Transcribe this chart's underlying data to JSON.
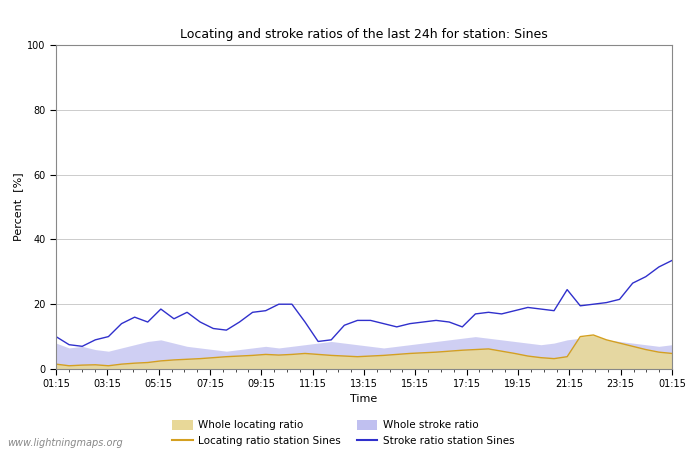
{
  "title": "Locating and stroke ratios of the last 24h for station: Sines",
  "xlabel": "Time",
  "ylabel": "Percent  [%]",
  "xlim": [
    0,
    48
  ],
  "ylim": [
    0,
    100
  ],
  "yticks": [
    0,
    20,
    40,
    60,
    80,
    100
  ],
  "xtick_labels": [
    "01:15",
    "03:15",
    "05:15",
    "07:15",
    "09:15",
    "11:15",
    "13:15",
    "15:15",
    "17:15",
    "19:15",
    "21:15",
    "23:15",
    "01:15"
  ],
  "bg_color": "#ffffff",
  "plot_bg_color": "#ffffff",
  "watermark": "www.lightningmaps.org",
  "whole_locating_fill_color": "#e8d898",
  "whole_locating_fill_alpha": 0.9,
  "whole_stroke_fill_color": "#c0c0f0",
  "whole_stroke_fill_alpha": 0.75,
  "locating_line_color": "#d4a020",
  "stroke_line_color": "#3030cc",
  "whole_locating": [
    1.5,
    1.0,
    1.2,
    1.3,
    1.0,
    1.5,
    1.8,
    2.0,
    2.5,
    2.8,
    3.0,
    3.2,
    3.5,
    3.8,
    4.0,
    4.2,
    4.5,
    4.3,
    4.5,
    4.8,
    4.5,
    4.2,
    4.0,
    3.8,
    4.0,
    4.2,
    4.5,
    4.8,
    5.0,
    5.2,
    5.5,
    5.8,
    6.0,
    6.2,
    5.5,
    4.8,
    4.0,
    3.5,
    3.2,
    3.8,
    10.0,
    10.5,
    9.0,
    8.0,
    7.0,
    6.0,
    5.2,
    4.8
  ],
  "whole_stroke": [
    8.0,
    6.5,
    7.0,
    6.0,
    5.5,
    6.5,
    7.5,
    8.5,
    9.0,
    8.0,
    7.0,
    6.5,
    6.0,
    5.5,
    6.0,
    6.5,
    7.0,
    6.5,
    7.0,
    7.5,
    8.0,
    8.5,
    8.0,
    7.5,
    7.0,
    6.5,
    7.0,
    7.5,
    8.0,
    8.5,
    9.0,
    9.5,
    10.0,
    9.5,
    9.0,
    8.5,
    8.0,
    7.5,
    8.0,
    9.0,
    9.5,
    10.0,
    9.0,
    8.5,
    8.0,
    7.5,
    7.0,
    7.5
  ],
  "locating_station": [
    1.5,
    1.0,
    1.2,
    1.3,
    1.0,
    1.5,
    1.8,
    2.0,
    2.5,
    2.8,
    3.0,
    3.2,
    3.5,
    3.8,
    4.0,
    4.2,
    4.5,
    4.3,
    4.5,
    4.8,
    4.5,
    4.2,
    4.0,
    3.8,
    4.0,
    4.2,
    4.5,
    4.8,
    5.0,
    5.2,
    5.5,
    5.8,
    6.0,
    6.2,
    5.5,
    4.8,
    4.0,
    3.5,
    3.2,
    3.8,
    10.0,
    10.5,
    9.0,
    8.0,
    7.0,
    6.0,
    5.2,
    4.8
  ],
  "stroke_station": [
    10.0,
    7.5,
    7.0,
    9.0,
    10.0,
    14.0,
    16.0,
    14.5,
    18.5,
    15.5,
    17.5,
    14.5,
    12.5,
    12.0,
    14.5,
    17.5,
    18.0,
    20.0,
    20.0,
    14.5,
    8.5,
    9.0,
    13.5,
    15.0,
    15.0,
    14.0,
    13.0,
    14.0,
    14.5,
    15.0,
    14.5,
    13.0,
    17.0,
    17.5,
    17.0,
    18.0,
    19.0,
    18.5,
    18.0,
    24.5,
    19.5,
    20.0,
    20.5,
    21.5,
    26.5,
    28.5,
    31.5,
    33.5
  ]
}
